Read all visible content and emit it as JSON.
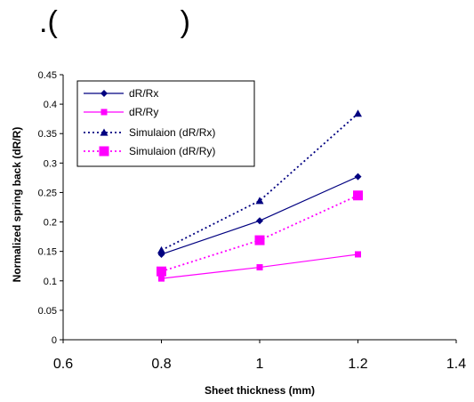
{
  "top_text": {
    "left": ".(",
    "right": ")"
  },
  "chart_data": {
    "type": "line",
    "title": "",
    "xlabel": "Sheet thickness (mm)",
    "ylabel": "Normalized spring back (dR/R)",
    "xlim": [
      0.6,
      1.4
    ],
    "ylim": [
      0,
      0.45
    ],
    "x_ticks": [
      0.6,
      0.8,
      1,
      1.2,
      1.4
    ],
    "x_tick_labels": [
      "0.6",
      "0.8",
      "1",
      "1.2",
      "1.4"
    ],
    "y_ticks": [
      0,
      0.05,
      0.1,
      0.15,
      0.2,
      0.25,
      0.3,
      0.35,
      0.4,
      0.45
    ],
    "y_tick_labels": [
      "0",
      "0.05",
      "0.1",
      "0.15",
      "0.2",
      "0.25",
      "0.3",
      "0.35",
      "0.4",
      "0.45"
    ],
    "grid": false,
    "legend_position": "top-left",
    "series": [
      {
        "name": "dR/Rx",
        "x": [
          0.8,
          1,
          1.2
        ],
        "values": [
          0.145,
          0.202,
          0.277
        ],
        "color": "#000080",
        "line_style": "solid",
        "marker": "diamond"
      },
      {
        "name": "dR/Ry",
        "x": [
          0.8,
          1,
          1.2
        ],
        "values": [
          0.104,
          0.123,
          0.145
        ],
        "color": "#ff00ff",
        "line_style": "solid",
        "marker": "square"
      },
      {
        "name": "Simulaion (dR/Rx)",
        "x": [
          0.8,
          1,
          1.2
        ],
        "values": [
          0.152,
          0.236,
          0.384
        ],
        "color": "#000080",
        "line_style": "dotted",
        "marker": "triangle"
      },
      {
        "name": "Simulaion (dR/Ry)",
        "x": [
          0.8,
          1,
          1.2
        ],
        "values": [
          0.116,
          0.169,
          0.245
        ],
        "color": "#ff00ff",
        "line_style": "dotted",
        "marker": "square-large"
      }
    ]
  }
}
